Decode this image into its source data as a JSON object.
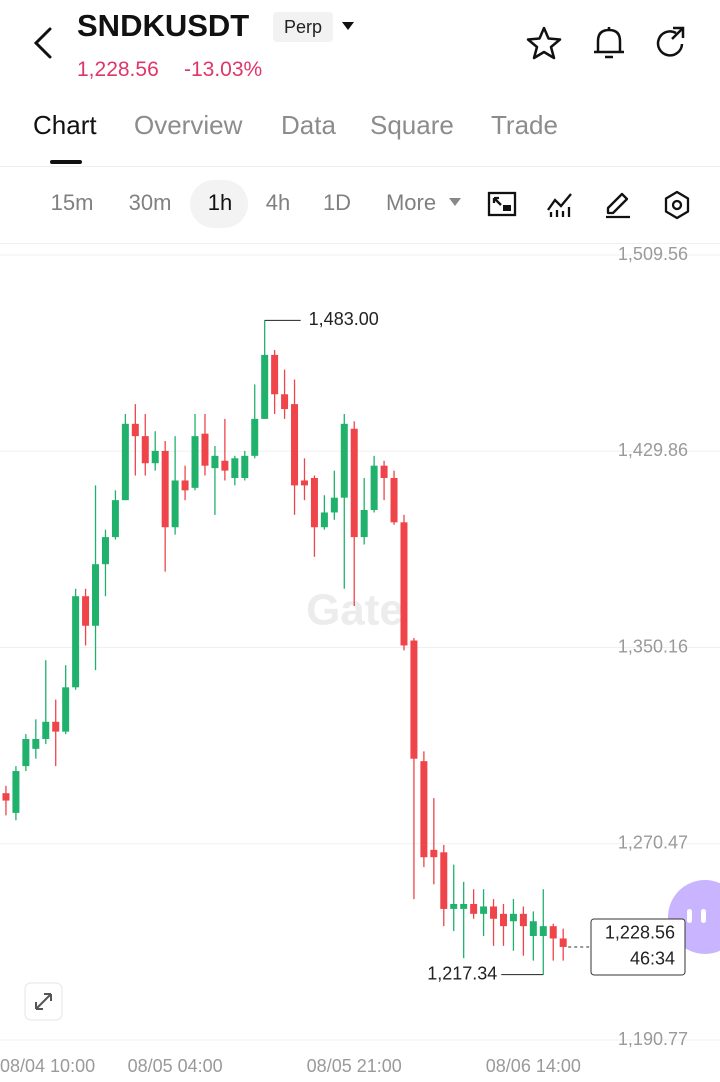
{
  "header": {
    "symbol": "SNDKUSDT",
    "contract": "Perp",
    "price": "1,228.56",
    "change": "-13.03%"
  },
  "tabs": [
    "Chart",
    "Overview",
    "Data",
    "Square",
    "Trade"
  ],
  "intervals": [
    "15m",
    "30m",
    "1h",
    "4h",
    "1D",
    "More"
  ],
  "chart_data": {
    "type": "candlestick",
    "watermark": "Gate",
    "up_color": "#20b26c",
    "down_color": "#ef454a",
    "grid": true,
    "xlim": [
      -0.6,
      59.7
    ],
    "xticks": [
      {
        "value": -5,
        "label": "08/04 10:00"
      },
      {
        "value": 17,
        "label": "08/05 04:00"
      },
      {
        "value": 35,
        "label": "08/05 21:00"
      },
      {
        "value": 53,
        "label": "08/06 14:00"
      }
    ],
    "ylim": [
      1190.77,
      1509.56
    ],
    "yticks": [
      {
        "value": 1190.77,
        "label": "1,190.77"
      },
      {
        "value": 1270.47,
        "label": "1,270.47"
      },
      {
        "value": 1350.16,
        "label": "1,350.16"
      },
      {
        "value": 1429.86,
        "label": "1,429.86"
      },
      {
        "value": 1509.56,
        "label": "1,509.56"
      }
    ],
    "open": [
      1291,
      1283,
      1302,
      1309,
      1313,
      1320,
      1316,
      1334,
      1371,
      1359,
      1384,
      1395,
      1410,
      1441,
      1436,
      1425,
      1430,
      1399,
      1418,
      1415,
      1437,
      1423,
      1426,
      1419,
      1419,
      1428,
      1443,
      1469,
      1453,
      1449,
      1418,
      1419,
      1399,
      1405,
      1411,
      1439,
      1395,
      1406,
      1424,
      1419,
      1401,
      1353,
      1304,
      1268,
      1267,
      1244,
      1244,
      1246,
      1242,
      1245,
      1242,
      1239,
      1242,
      1233,
      1233,
      1237,
      1232
    ],
    "high": [
      1294,
      1302,
      1315,
      1321,
      1345,
      1329,
      1343,
      1374,
      1374,
      1416,
      1398,
      1414,
      1445,
      1449,
      1445,
      1438,
      1434,
      1436,
      1424,
      1445,
      1445,
      1432,
      1443,
      1428,
      1430,
      1457,
      1483,
      1471,
      1463,
      1459,
      1427,
      1420,
      1412,
      1422,
      1445,
      1442,
      1419,
      1428,
      1426,
      1422,
      1404,
      1354,
      1308,
      1289,
      1270,
      1262,
      1255,
      1252,
      1252,
      1248,
      1246,
      1248,
      1245,
      1243,
      1252,
      1238,
      1236
    ],
    "low": [
      1282,
      1280,
      1300,
      1305,
      1311,
      1302,
      1315,
      1333,
      1351,
      1341,
      1371,
      1394,
      1410,
      1420,
      1420,
      1422,
      1381,
      1396,
      1410,
      1414,
      1420,
      1404,
      1418,
      1416,
      1418,
      1427,
      1443,
      1445,
      1443,
      1404,
      1410,
      1387,
      1398,
      1402,
      1374,
      1367,
      1392,
      1405,
      1410,
      1400,
      1349,
      1248,
      1261,
      1254,
      1237,
      1235,
      1224,
      1240,
      1233,
      1229,
      1229,
      1227,
      1225,
      1223,
      1217.34,
      1223,
      1223
    ],
    "close": [
      1288,
      1300,
      1313,
      1313,
      1320,
      1316,
      1334,
      1371,
      1359,
      1384,
      1395,
      1410,
      1441,
      1436,
      1425,
      1430,
      1399,
      1418,
      1414,
      1436,
      1424,
      1428,
      1422,
      1427,
      1428,
      1443,
      1469,
      1453,
      1447,
      1416,
      1416,
      1399,
      1405,
      1411,
      1441,
      1395,
      1406,
      1424,
      1419,
      1401,
      1351,
      1305,
      1265,
      1265,
      1244,
      1246,
      1246,
      1242,
      1245,
      1240,
      1237,
      1242,
      1237,
      1239,
      1237,
      1232,
      1228.56
    ],
    "annotations": [
      {
        "value": 1483,
        "label": "1,483.00"
      },
      {
        "value": 1217.34,
        "label": "1,217.34"
      }
    ],
    "last_price": {
      "value": 1228.56,
      "label": "1,228.56"
    },
    "countdown": "46:34"
  }
}
